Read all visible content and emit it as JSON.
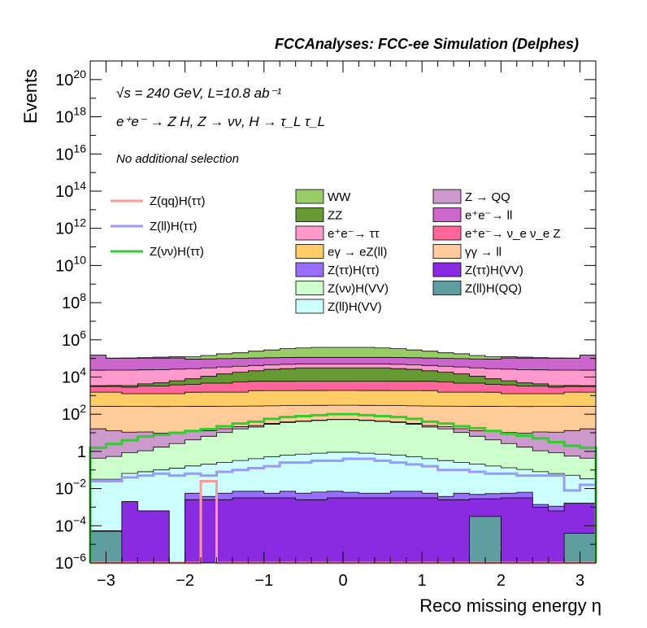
{
  "chart_data": {
    "type": "area",
    "title": "FCCAnalyses: FCC-ee Simulation (Delphes)",
    "xlabel": "Reco missing energy η",
    "ylabel": "Events",
    "xlim": [
      -3.2,
      3.2
    ],
    "ylim_log10": [
      -6,
      21
    ],
    "y_scale": "log",
    "x_ticks": [
      "−3",
      "−2",
      "−1",
      "0",
      "1",
      "2",
      "3"
    ],
    "y_ticks": [
      {
        "log": -6,
        "label": "10",
        "exp": "−6"
      },
      {
        "log": -4,
        "label": "10",
        "exp": "−4"
      },
      {
        "log": -2,
        "label": "10",
        "exp": "−2"
      },
      {
        "log": 0,
        "label": "1",
        "exp": ""
      },
      {
        "log": 2,
        "label": "10",
        "exp": "2"
      },
      {
        "log": 4,
        "label": "10",
        "exp": "4"
      },
      {
        "log": 6,
        "label": "10",
        "exp": "6"
      },
      {
        "log": 8,
        "label": "10",
        "exp": "8"
      },
      {
        "log": 10,
        "label": "10",
        "exp": "10"
      },
      {
        "log": 12,
        "label": "10",
        "exp": "12"
      },
      {
        "log": 14,
        "label": "10",
        "exp": "14"
      },
      {
        "log": 16,
        "label": "10",
        "exp": "16"
      },
      {
        "log": 18,
        "label": "10",
        "exp": "18"
      },
      {
        "log": 20,
        "label": "10",
        "exp": "20"
      }
    ],
    "annotations": {
      "energy": "√s = 240 GeV, L=10.8 ab⁻¹",
      "process": "e⁺e⁻ → Z H, Z → νν, H → τ_L τ_L",
      "selection": "No additional selection"
    },
    "bin_edges": [
      -3.2,
      -3.0,
      -2.8,
      -2.6,
      -2.4,
      -2.2,
      -2.0,
      -1.8,
      -1.6,
      -1.4,
      -1.2,
      -1.0,
      -0.8,
      -0.6,
      -0.4,
      -0.2,
      0.0,
      0.2,
      0.4,
      0.6,
      0.8,
      1.0,
      1.2,
      1.4,
      1.6,
      1.8,
      2.0,
      2.2,
      2.4,
      2.6,
      2.8,
      3.0,
      3.2
    ],
    "stack_bottom_to_top_log10": [
      {
        "name": "Z(ll)H(QQ)",
        "color": "#5f9ea0",
        "values": [
          -4.3,
          -4.3,
          -9,
          -9,
          -9,
          -9,
          -9,
          -9,
          -9,
          -9,
          -9,
          -9,
          -9,
          -9,
          -9,
          -9,
          -9,
          -9,
          -9,
          -9,
          -9,
          -9,
          -9,
          -9,
          -3.5,
          -3.5,
          -9,
          -9,
          -9,
          -9,
          -4.4,
          -4.4
        ]
      },
      {
        "name": "Z(ττ)H(VV)",
        "color": "#8a2be2",
        "values": [
          -5.5,
          -5.5,
          -2.7,
          -3.2,
          -3.2,
          -9,
          -2.6,
          -2.6,
          -2.6,
          -2.5,
          -2.5,
          -2.5,
          -2.5,
          -2.6,
          -2.6,
          -2.5,
          -2.5,
          -2.5,
          -2.5,
          -2.5,
          -2.5,
          -2.5,
          -2.6,
          -2.6,
          -2.6,
          -2.6,
          -2.5,
          -2.5,
          -3.0,
          -3.2,
          -2.8,
          -2.8
        ]
      },
      {
        "name": "Z(ττ)H(ττ)",
        "color": "#9b6dff",
        "values": [
          -9,
          -9,
          -9,
          -9,
          -9,
          -9,
          -2.5,
          -2.9,
          -2.5,
          -2.4,
          -2.4,
          -2.6,
          -2.4,
          -2.5,
          -2.4,
          -2.4,
          -2.5,
          -2.6,
          -2.6,
          -2.4,
          -2.4,
          -2.6,
          -2.9,
          -2.5,
          -2.7,
          -2.6,
          -2.6,
          -2.5,
          -3.4,
          -3.3,
          -9,
          -9
        ]
      },
      {
        "name": "Z(ll)H(VV)",
        "color": "#ccffff",
        "values": [
          -1.5,
          -1.5,
          -1.2,
          -1.1,
          -1.0,
          -0.9,
          -0.8,
          -0.7,
          -0.6,
          -0.5,
          -0.4,
          -0.3,
          -0.2,
          -0.15,
          -0.1,
          -0.05,
          -0.05,
          -0.1,
          -0.15,
          -0.2,
          -0.3,
          -0.4,
          -0.5,
          -0.6,
          -0.7,
          -0.8,
          -0.9,
          -1.0,
          -1.1,
          -1.2,
          -1.3,
          -1.5
        ]
      },
      {
        "name": "Z(νν)H(VV)",
        "color": "#ccffcc",
        "values": [
          -0.4,
          -0.3,
          -0.1,
          0.0,
          0.2,
          0.4,
          0.6,
          0.8,
          1.0,
          1.2,
          1.3,
          1.45,
          1.55,
          1.6,
          1.65,
          1.7,
          1.7,
          1.65,
          1.6,
          1.55,
          1.45,
          1.3,
          1.2,
          1.0,
          0.8,
          0.6,
          0.4,
          0.2,
          0.0,
          -0.1,
          -0.3,
          -0.4
        ]
      },
      {
        "name": "Z → QQ",
        "color": "#cc99cc",
        "values": [
          1.2,
          1.1,
          1.0,
          1.0,
          0.9,
          0.9,
          0.9,
          0.8,
          0.8,
          0.7,
          0.6,
          0.5,
          0.4,
          0.3,
          0.3,
          0.3,
          0.3,
          0.3,
          0.3,
          0.4,
          0.5,
          0.6,
          0.7,
          0.8,
          0.8,
          0.9,
          0.9,
          0.9,
          1.0,
          1.0,
          1.1,
          1.2
        ]
      },
      {
        "name": "γγ → ll",
        "color": "#ffcc99",
        "values": [
          2.4,
          2.4,
          2.4,
          2.4,
          2.4,
          2.4,
          2.4,
          2.4,
          2.4,
          2.4,
          2.4,
          2.4,
          2.4,
          2.4,
          2.4,
          2.4,
          2.4,
          2.4,
          2.4,
          2.4,
          2.4,
          2.4,
          2.4,
          2.4,
          2.4,
          2.4,
          2.4,
          2.4,
          2.4,
          2.4,
          2.4,
          2.4
        ]
      },
      {
        "name": "eγ → eZ(ll)",
        "color": "#ffcc66",
        "values": [
          3.1,
          3.1,
          3.0,
          3.0,
          3.0,
          3.0,
          3.1,
          3.1,
          3.1,
          3.1,
          3.2,
          3.2,
          3.2,
          3.2,
          3.2,
          3.2,
          3.2,
          3.2,
          3.2,
          3.2,
          3.2,
          3.2,
          3.1,
          3.1,
          3.1,
          3.1,
          3.0,
          3.0,
          3.0,
          3.0,
          3.1,
          3.1
        ]
      },
      {
        "name": "e⁺e⁻ → ν_eν_e Z",
        "color": "#ff6699",
        "values": [
          3.2,
          3.2,
          3.2,
          3.3,
          3.3,
          3.4,
          3.4,
          3.5,
          3.5,
          3.6,
          3.6,
          3.6,
          3.6,
          3.6,
          3.6,
          3.6,
          3.6,
          3.6,
          3.6,
          3.6,
          3.6,
          3.6,
          3.6,
          3.5,
          3.5,
          3.4,
          3.4,
          3.3,
          3.3,
          3.2,
          3.2,
          3.2
        ]
      },
      {
        "name": "ZZ",
        "color": "#669933",
        "values": [
          2.5,
          2.6,
          2.8,
          3.0,
          3.2,
          3.4,
          3.6,
          3.8,
          4.0,
          4.1,
          4.2,
          4.3,
          4.35,
          4.4,
          4.4,
          4.4,
          4.4,
          4.4,
          4.4,
          4.35,
          4.3,
          4.2,
          4.1,
          4.0,
          3.8,
          3.6,
          3.4,
          3.2,
          3.0,
          2.8,
          2.6,
          2.5
        ]
      },
      {
        "name": "e⁺e⁻ → ττ",
        "color": "#ff99cc",
        "values": [
          4.3,
          4.3,
          4.3,
          4.3,
          4.3,
          4.3,
          4.3,
          4.3,
          4.3,
          4.3,
          4.3,
          4.3,
          4.3,
          4.3,
          4.3,
          4.3,
          4.3,
          4.3,
          4.3,
          4.3,
          4.3,
          4.3,
          4.3,
          4.3,
          4.3,
          4.3,
          4.3,
          4.3,
          4.3,
          4.3,
          4.3,
          4.3
        ]
      },
      {
        "name": "e⁺e⁻ → ll",
        "color": "#cc66cc",
        "values": [
          5.1,
          4.9,
          4.9,
          4.9,
          4.9,
          4.9,
          4.8,
          4.8,
          4.8,
          4.8,
          4.8,
          4.8,
          4.8,
          4.8,
          4.8,
          4.8,
          4.8,
          4.8,
          4.8,
          4.8,
          4.8,
          4.8,
          4.8,
          4.8,
          4.8,
          4.8,
          4.9,
          4.9,
          4.9,
          4.9,
          4.9,
          5.1
        ]
      },
      {
        "name": "WW",
        "color": "#99cc66",
        "values": [
          3.0,
          3.2,
          3.5,
          3.8,
          4.1,
          4.3,
          4.5,
          4.7,
          4.9,
          5.0,
          5.15,
          5.25,
          5.35,
          5.4,
          5.45,
          5.45,
          5.45,
          5.45,
          5.4,
          5.35,
          5.25,
          5.15,
          5.0,
          4.9,
          4.7,
          4.5,
          4.3,
          4.1,
          3.8,
          3.5,
          3.2,
          3.0
        ]
      }
    ],
    "lines_log10": [
      {
        "name": "Z(qq)H(ττ)",
        "color": "#ff9999",
        "values": [
          -9,
          -9,
          -9,
          -9,
          -9,
          -9,
          -9,
          -1.6,
          -9,
          -9,
          -9,
          -9,
          -9,
          -9,
          -9,
          -9,
          -9,
          -9,
          -9,
          -9,
          -9,
          -9,
          -9,
          -9,
          -9,
          -9,
          -9,
          -9,
          -9,
          -9,
          -9,
          -9
        ]
      },
      {
        "name": "Z(ll)H(ττ)",
        "color": "#9999ff",
        "values": [
          -1.6,
          -1.6,
          -1.4,
          -1.3,
          -1.2,
          -1.3,
          -1.2,
          -1.3,
          -1.1,
          -1.0,
          -0.9,
          -0.8,
          -0.6,
          -0.6,
          -0.5,
          -0.5,
          -0.4,
          -0.4,
          -0.5,
          -0.6,
          -0.7,
          -0.8,
          -1.0,
          -1.0,
          -1.1,
          -1.2,
          -1.2,
          -1.3,
          -1.3,
          -1.3,
          -2.1,
          -1.8
        ]
      },
      {
        "name": "Z(νν)H(ττ)",
        "color": "#33cc33",
        "values": [
          0.2,
          0.4,
          0.6,
          0.8,
          0.9,
          1.0,
          1.1,
          1.2,
          1.35,
          1.5,
          1.6,
          1.75,
          1.85,
          1.9,
          1.95,
          2.0,
          2.0,
          1.95,
          1.9,
          1.85,
          1.75,
          1.6,
          1.5,
          1.35,
          1.25,
          1.1,
          0.95,
          0.85,
          0.7,
          0.5,
          0.3,
          0.2
        ]
      }
    ],
    "legend_left": [
      "Z(qq)H(ττ)",
      "Z(ll)H(ττ)",
      "Z(νν)H(ττ)"
    ],
    "legend_mid": [
      "WW",
      "ZZ",
      "e⁺e⁻→ ττ",
      "eγ → eZ(ll)",
      "Z(ττ)H(ττ)",
      "Z(νν)H(VV)",
      "Z(ll)H(VV)"
    ],
    "legend_right": [
      "Z → QQ",
      "e⁺e⁻→ ll",
      "e⁺e⁻→ ν_e ν_e Z",
      "γγ → ll",
      "Z(ττ)H(VV)",
      "Z(ll)H(QQ)"
    ]
  }
}
